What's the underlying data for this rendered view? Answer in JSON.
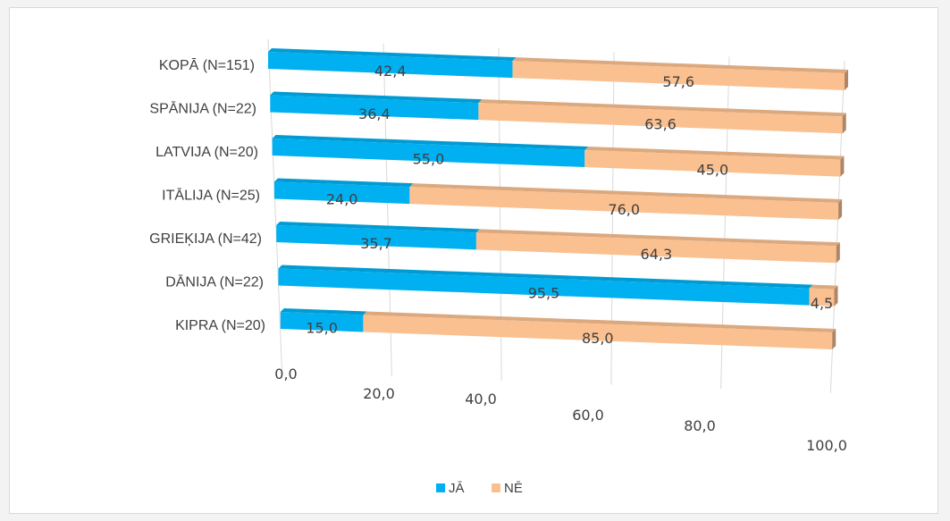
{
  "chart_data": {
    "type": "bar",
    "orientation": "horizontal",
    "stacked": true,
    "percent_stacked": true,
    "three_d": true,
    "categories": [
      "KOPĀ (N=151)",
      "SPĀNIJA (N=22)",
      "LATVIJA (N=20)",
      "ITĀLIJA (N=25)",
      "GRIEĶIJA (N=42)",
      "DĀNIJA (N=22)",
      "KIPRA (N=20)"
    ],
    "series": [
      {
        "name": "JĀ",
        "color": "#00b0f0",
        "values": [
          42.4,
          36.4,
          55.0,
          24.0,
          35.7,
          95.5,
          15.0
        ],
        "labels": [
          "42,4",
          "36,4",
          "55,0",
          "24,0",
          "35,7",
          "95,5",
          "15,0"
        ]
      },
      {
        "name": "NĒ",
        "color": "#fac090",
        "values": [
          57.6,
          63.6,
          45.0,
          76.0,
          64.3,
          4.5,
          85.0
        ],
        "labels": [
          "57,6",
          "63,6",
          "45,0",
          "76,0",
          "64,3",
          "4,5",
          "85,0"
        ]
      }
    ],
    "x_ticks": [
      0,
      20,
      40,
      60,
      80,
      100
    ],
    "x_tick_labels": [
      "0,0",
      "20,0",
      "40,0",
      "60,0",
      "80,0",
      "100,0"
    ],
    "xlim": [
      0,
      100
    ],
    "title": "",
    "xlabel": "",
    "ylabel": "",
    "grid": true,
    "legend_position": "bottom"
  }
}
